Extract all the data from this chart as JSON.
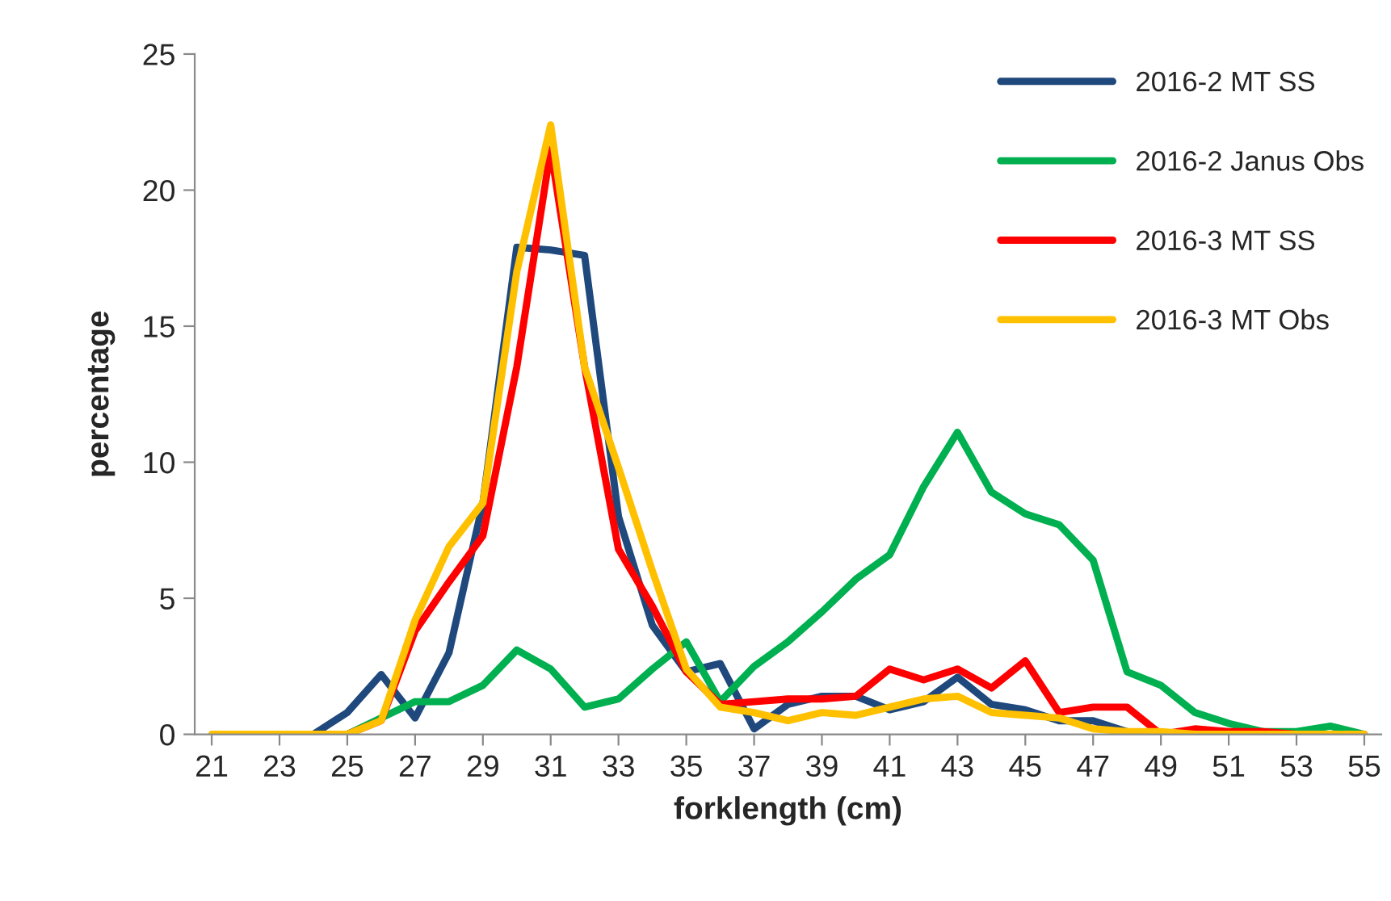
{
  "chart_data": {
    "type": "line",
    "xlabel": "forklength (cm)",
    "ylabel": "percentage",
    "x": [
      21,
      22,
      23,
      24,
      25,
      26,
      27,
      28,
      29,
      30,
      31,
      32,
      33,
      34,
      35,
      36,
      37,
      38,
      39,
      40,
      41,
      42,
      43,
      44,
      45,
      46,
      47,
      48,
      49,
      50,
      51,
      52,
      53,
      54,
      55
    ],
    "series": [
      {
        "name": "2016-2 MT SS",
        "color": "#1f497d",
        "values": [
          null,
          null,
          0,
          0,
          0.8,
          2.2,
          0.6,
          3.0,
          8.5,
          17.9,
          17.8,
          17.6,
          8,
          4,
          2.3,
          2.6,
          0.2,
          1.1,
          1.4,
          1.4,
          0.9,
          1.2,
          2.1,
          1.1,
          0.9,
          0.5,
          0.5,
          0.1,
          0,
          null,
          null,
          null,
          null,
          null,
          null
        ]
      },
      {
        "name": "2016-2 Janus Obs",
        "color": "#00b050",
        "values": [
          null,
          null,
          null,
          0,
          0,
          0.6,
          1.2,
          1.2,
          1.8,
          3.1,
          2.4,
          1.0,
          1.3,
          2.4,
          3.4,
          1.2,
          2.5,
          3.4,
          4.5,
          5.7,
          6.6,
          9.1,
          11.1,
          8.9,
          8.1,
          7.7,
          6.4,
          2.3,
          1.8,
          0.8,
          0.4,
          0.1,
          0.1,
          0.3,
          0
        ]
      },
      {
        "name": "2016-3 MT SS",
        "color": "#ff0000",
        "values": [
          null,
          null,
          null,
          0,
          0,
          0.5,
          3.8,
          5.6,
          7.3,
          13.5,
          21.5,
          13.5,
          6.8,
          4.7,
          2.3,
          1.1,
          1.2,
          1.3,
          1.3,
          1.4,
          2.4,
          2.0,
          2.4,
          1.7,
          2.7,
          0.8,
          1.0,
          1.0,
          0,
          0.2,
          0.1,
          0.1,
          0,
          0,
          0
        ]
      },
      {
        "name": "2016-3 MT Obs",
        "color": "#ffc000",
        "values": [
          0,
          0,
          0,
          0,
          0,
          0.5,
          4.2,
          6.9,
          8.5,
          17,
          22.4,
          13.5,
          9.8,
          6,
          2.4,
          1.0,
          0.8,
          0.5,
          0.8,
          0.7,
          1.0,
          1.3,
          1.4,
          0.8,
          0.7,
          0.6,
          0.2,
          0.1,
          0.1,
          0,
          0,
          0,
          0,
          0,
          0
        ]
      }
    ],
    "xlim": [
      20.5,
      55.5
    ],
    "xticks": [
      21,
      23,
      25,
      27,
      29,
      31,
      33,
      35,
      37,
      39,
      41,
      43,
      45,
      47,
      49,
      51,
      53,
      55
    ],
    "ylim": [
      0,
      25
    ],
    "yticks": [
      0,
      5,
      10,
      15,
      20,
      25
    ],
    "grid": false,
    "legend": "top right",
    "marker": "none",
    "line_style": "solid"
  }
}
